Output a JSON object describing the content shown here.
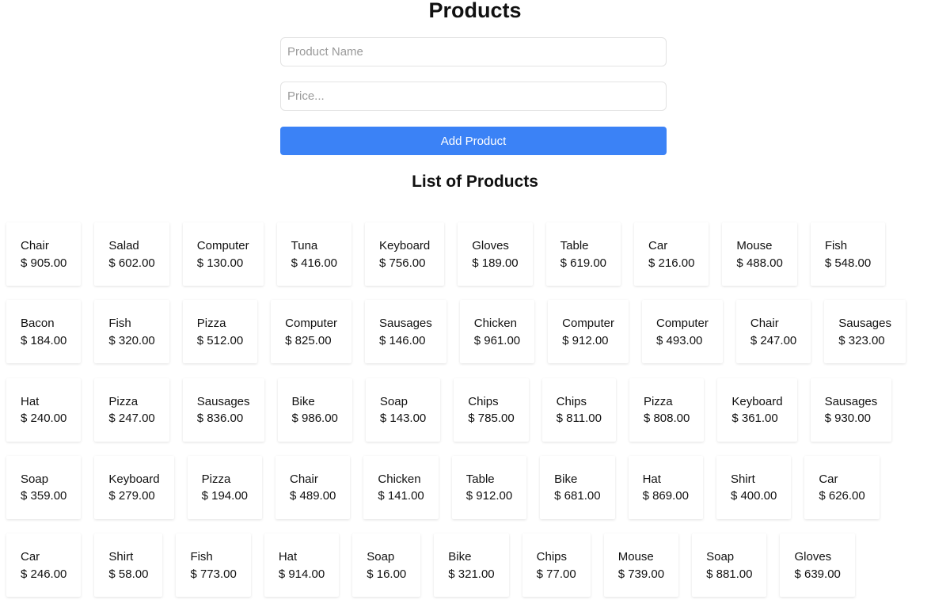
{
  "header": {
    "title": "Products",
    "list_title": "List of Products"
  },
  "form": {
    "name_placeholder": "Product Name",
    "price_placeholder": "Price...",
    "name_value": "",
    "price_value": "",
    "submit_label": "Add Product",
    "accent_color": "#3b82f6"
  },
  "products": [
    [
      [
        "Chair",
        "$ 905.00"
      ],
      [
        "Salad",
        "$ 602.00"
      ],
      [
        "Computer",
        "$ 130.00"
      ],
      [
        "Tuna",
        "$ 416.00"
      ],
      [
        "Keyboard",
        "$ 756.00"
      ],
      [
        "Gloves",
        "$ 189.00"
      ],
      [
        "Table",
        "$ 619.00"
      ],
      [
        "Car",
        "$ 216.00"
      ],
      [
        "Mouse",
        "$ 488.00"
      ],
      [
        "Fish",
        "$ 548.00"
      ]
    ],
    [
      [
        "Bacon",
        "$ 184.00"
      ],
      [
        "Fish",
        "$ 320.00"
      ],
      [
        "Pizza",
        "$ 512.00"
      ],
      [
        "Computer",
        "$ 825.00"
      ],
      [
        "Sausages",
        "$ 146.00"
      ],
      [
        "Chicken",
        "$ 961.00"
      ],
      [
        "Computer",
        "$ 912.00"
      ],
      [
        "Computer",
        "$ 493.00"
      ],
      [
        "Chair",
        "$ 247.00"
      ],
      [
        "Sausages",
        "$ 323.00"
      ]
    ],
    [
      [
        "Hat",
        "$ 240.00"
      ],
      [
        "Pizza",
        "$ 247.00"
      ],
      [
        "Sausages",
        "$ 836.00"
      ],
      [
        "Bike",
        "$ 986.00"
      ],
      [
        "Soap",
        "$ 143.00"
      ],
      [
        "Chips",
        "$ 785.00"
      ],
      [
        "Chips",
        "$ 811.00"
      ],
      [
        "Pizza",
        "$ 808.00"
      ],
      [
        "Keyboard",
        "$ 361.00"
      ],
      [
        "Sausages",
        "$ 930.00"
      ]
    ],
    [
      [
        "Soap",
        "$ 359.00"
      ],
      [
        "Keyboard",
        "$ 279.00"
      ],
      [
        "Pizza",
        "$ 194.00"
      ],
      [
        "Chair",
        "$ 489.00"
      ],
      [
        "Chicken",
        "$ 141.00"
      ],
      [
        "Table",
        "$ 912.00"
      ],
      [
        "Bike",
        "$ 681.00"
      ],
      [
        "Hat",
        "$ 869.00"
      ],
      [
        "Shirt",
        "$ 400.00"
      ],
      [
        "Car",
        "$ 626.00"
      ]
    ],
    [
      [
        "Car",
        "$ 246.00"
      ],
      [
        "Shirt",
        "$ 58.00"
      ],
      [
        "Fish",
        "$ 773.00"
      ],
      [
        "Hat",
        "$ 914.00"
      ],
      [
        "Soap",
        "$ 16.00"
      ],
      [
        "Bike",
        "$ 321.00"
      ],
      [
        "Chips",
        "$ 77.00"
      ],
      [
        "Mouse",
        "$ 739.00"
      ],
      [
        "Soap",
        "$ 881.00"
      ],
      [
        "Gloves",
        "$ 639.00"
      ]
    ]
  ]
}
